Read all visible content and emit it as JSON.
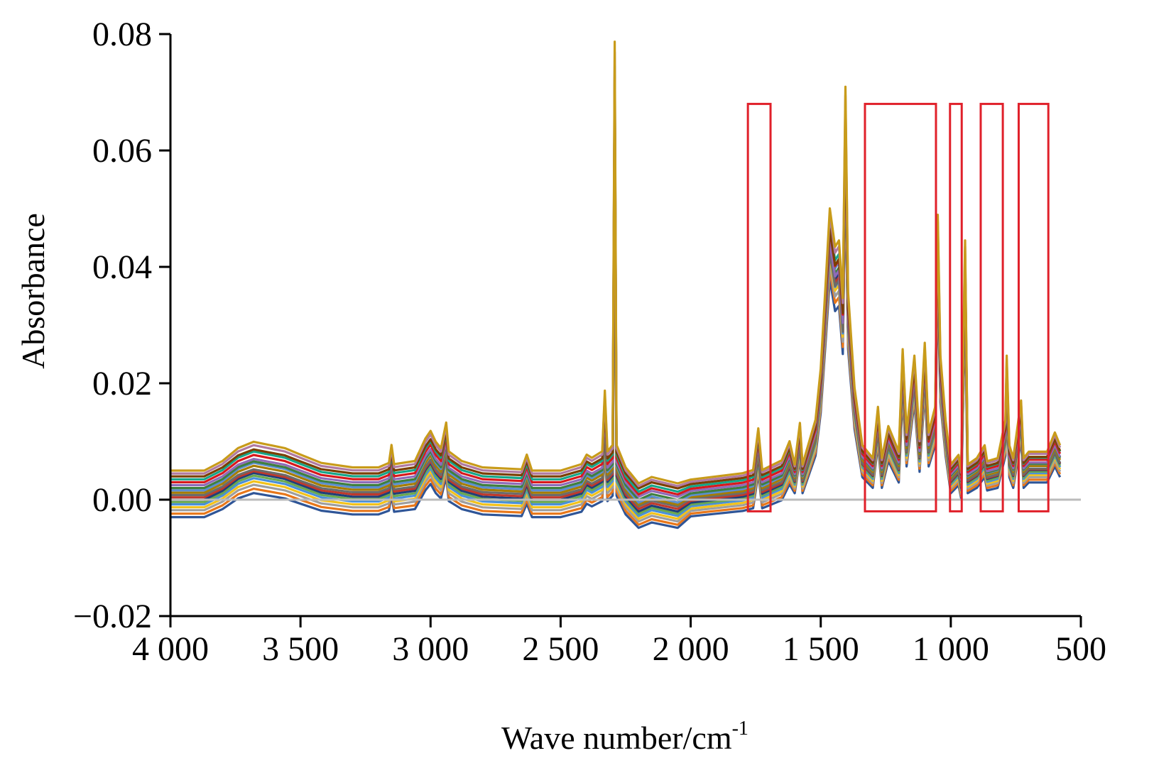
{
  "chart_data": {
    "type": "line",
    "title": "",
    "xlabel": "Wave number/cm",
    "xlabel_superscript": "-1",
    "ylabel": "Absorbance",
    "xlim": [
      4000,
      500
    ],
    "x_reversed": true,
    "ylim": [
      -0.02,
      0.08
    ],
    "xticks": [
      4000,
      3500,
      3000,
      2500,
      2000,
      1500,
      1000,
      500
    ],
    "xtick_labels": [
      "4 000",
      "3 500",
      "3 000",
      "2 500",
      "2 000",
      "1 500",
      "1 000",
      "500"
    ],
    "yticks": [
      -0.02,
      0.0,
      0.02,
      0.04,
      0.06,
      0.08
    ],
    "ytick_labels": [
      "−0.02",
      "0.00",
      "0.02",
      "0.04",
      "0.06",
      "0.08"
    ],
    "grid": false,
    "legend": "none",
    "zero_line": {
      "y": 0.0,
      "color": "#bbbbbb"
    },
    "series_count_note_free": true,
    "baseline_spectrum": [
      [
        4000,
        0.0
      ],
      [
        3870,
        0.0
      ],
      [
        3800,
        0.0015
      ],
      [
        3740,
        0.0035
      ],
      [
        3680,
        0.0045
      ],
      [
        3620,
        0.004
      ],
      [
        3560,
        0.0035
      ],
      [
        3500,
        0.0025
      ],
      [
        3420,
        0.0012
      ],
      [
        3300,
        0.0005
      ],
      [
        3200,
        0.0005
      ],
      [
        3160,
        0.0012
      ],
      [
        3150,
        0.004
      ],
      [
        3140,
        0.001
      ],
      [
        3060,
        0.0015
      ],
      [
        3020,
        0.005
      ],
      [
        3000,
        0.0062
      ],
      [
        2980,
        0.0045
      ],
      [
        2960,
        0.0035
      ],
      [
        2940,
        0.0075
      ],
      [
        2930,
        0.003
      ],
      [
        2880,
        0.0015
      ],
      [
        2800,
        0.0005
      ],
      [
        2650,
        0.0002
      ],
      [
        2630,
        0.0025
      ],
      [
        2610,
        0.0
      ],
      [
        2500,
        0.0
      ],
      [
        2420,
        0.001
      ],
      [
        2400,
        0.0025
      ],
      [
        2380,
        0.002
      ],
      [
        2340,
        0.003
      ],
      [
        2330,
        0.0125
      ],
      [
        2320,
        0.003
      ],
      [
        2300,
        0.004
      ],
      [
        2292,
        0.067
      ],
      [
        2285,
        0.004
      ],
      [
        2250,
        0.0005
      ],
      [
        2200,
        -0.002
      ],
      [
        2150,
        -0.001
      ],
      [
        2050,
        -0.002
      ],
      [
        2000,
        -0.0005
      ],
      [
        1900,
        0.0
      ],
      [
        1800,
        0.0005
      ],
      [
        1760,
        0.001
      ],
      [
        1740,
        0.0075
      ],
      [
        1725,
        0.001
      ],
      [
        1650,
        0.0025
      ],
      [
        1620,
        0.0055
      ],
      [
        1600,
        0.003
      ],
      [
        1580,
        0.0095
      ],
      [
        1570,
        0.003
      ],
      [
        1520,
        0.01
      ],
      [
        1500,
        0.018
      ],
      [
        1480,
        0.032
      ],
      [
        1465,
        0.043
      ],
      [
        1445,
        0.037
      ],
      [
        1430,
        0.038
      ],
      [
        1415,
        0.029
      ],
      [
        1405,
        0.062
      ],
      [
        1395,
        0.03
      ],
      [
        1370,
        0.015
      ],
      [
        1340,
        0.006
      ],
      [
        1300,
        0.004
      ],
      [
        1280,
        0.012
      ],
      [
        1265,
        0.004
      ],
      [
        1240,
        0.009
      ],
      [
        1200,
        0.005
      ],
      [
        1185,
        0.021
      ],
      [
        1170,
        0.008
      ],
      [
        1140,
        0.02
      ],
      [
        1120,
        0.007
      ],
      [
        1100,
        0.022
      ],
      [
        1085,
        0.008
      ],
      [
        1060,
        0.012
      ],
      [
        1050,
        0.042
      ],
      [
        1040,
        0.02
      ],
      [
        1020,
        0.01
      ],
      [
        1000,
        0.003
      ],
      [
        970,
        0.0045
      ],
      [
        960,
        0.002
      ],
      [
        945,
        0.038
      ],
      [
        935,
        0.003
      ],
      [
        900,
        0.004
      ],
      [
        870,
        0.006
      ],
      [
        860,
        0.0035
      ],
      [
        820,
        0.004
      ],
      [
        790,
        0.01
      ],
      [
        785,
        0.02
      ],
      [
        775,
        0.006
      ],
      [
        760,
        0.004
      ],
      [
        730,
        0.013
      ],
      [
        720,
        0.004
      ],
      [
        700,
        0.005
      ],
      [
        630,
        0.005
      ],
      [
        600,
        0.008
      ],
      [
        580,
        0.006
      ]
    ],
    "spectra_offsets": [
      -0.003,
      -0.0024,
      -0.0018,
      -0.0013,
      -0.0008,
      -0.0004,
      0.0,
      0.0004,
      0.0008,
      0.0012,
      0.0016,
      0.002,
      0.0025,
      0.003,
      0.0035,
      0.004,
      0.0045,
      0.005
    ],
    "spectra_scales": [
      0.92,
      0.95,
      0.97,
      0.99,
      1.0,
      1.01,
      1.02,
      1.0,
      0.98,
      1.03,
      1.05,
      1.02,
      1.0,
      1.04,
      1.06,
      1.03,
      1.08,
      1.1
    ],
    "series_colors": [
      "#2f5597",
      "#e8771a",
      "#9e9e9e",
      "#f2c21b",
      "#4a90d9",
      "#6aa84f",
      "#1f3f7a",
      "#c0392b",
      "#6b6b6b",
      "#a67c00",
      "#5b8fd0",
      "#3f7f3f",
      "#8e6bb8",
      "#d7191c",
      "#17a589",
      "#7b3f00",
      "#b07aa1",
      "#c89b1a"
    ],
    "highlight_regions": [
      {
        "x_range": [
          1780,
          1693
        ],
        "y_range": [
          -0.002,
          0.068
        ]
      },
      {
        "x_range": [
          1330,
          1057
        ],
        "y_range": [
          -0.002,
          0.068
        ]
      },
      {
        "x_range": [
          1003,
          958
        ],
        "y_range": [
          -0.002,
          0.068
        ]
      },
      {
        "x_range": [
          885,
          800
        ],
        "y_range": [
          -0.002,
          0.068
        ]
      },
      {
        "x_range": [
          739,
          625
        ],
        "y_range": [
          -0.002,
          0.068
        ]
      }
    ],
    "highlight_color": "#e0202a"
  }
}
